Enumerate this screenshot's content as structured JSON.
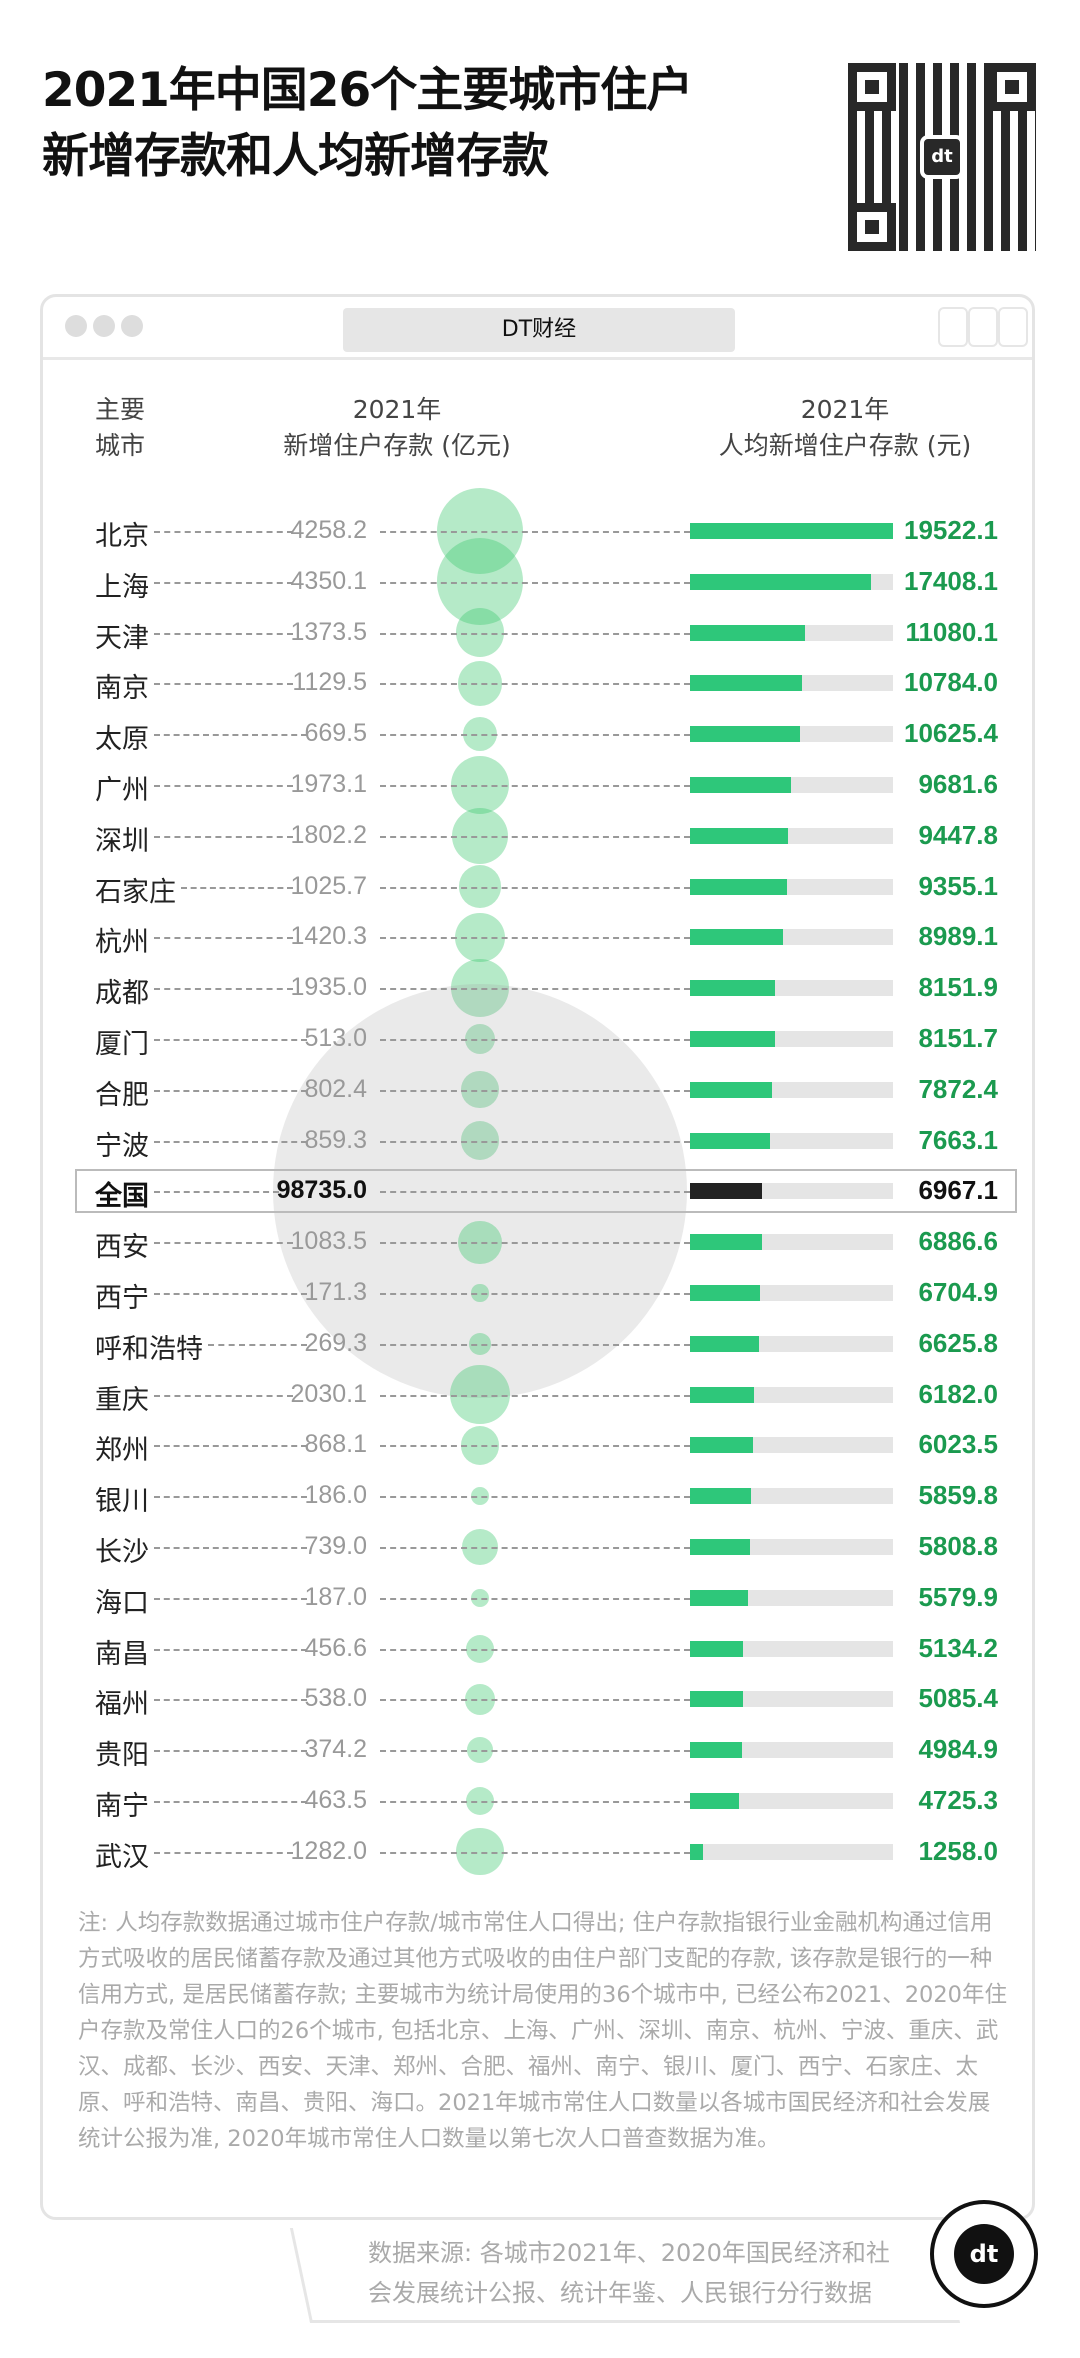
{
  "title_lines": [
    "2021年中国26个主要城市住户",
    "新增存款和人均新增存款"
  ],
  "window_title": "DT财经",
  "logo_text": "dt",
  "chart_data": {
    "type": "table",
    "headers": {
      "city": [
        "主要",
        "城市"
      ],
      "deposit": [
        "2021年",
        "新增住户存款 (亿元)"
      ],
      "per_capita": [
        "2021年",
        "人均新增住户存款 (元)"
      ]
    },
    "rows": [
      {
        "city": "北京",
        "deposit": "4258.2",
        "per_capita": "19522.1"
      },
      {
        "city": "上海",
        "deposit": "4350.1",
        "per_capita": "17408.1"
      },
      {
        "city": "天津",
        "deposit": "1373.5",
        "per_capita": "11080.1"
      },
      {
        "city": "南京",
        "deposit": "1129.5",
        "per_capita": "10784.0"
      },
      {
        "city": "太原",
        "deposit": "669.5",
        "per_capita": "10625.4"
      },
      {
        "city": "广州",
        "deposit": "1973.1",
        "per_capita": "9681.6"
      },
      {
        "city": "深圳",
        "deposit": "1802.2",
        "per_capita": "9447.8"
      },
      {
        "city": "石家庄",
        "deposit": "1025.7",
        "per_capita": "9355.1"
      },
      {
        "city": "杭州",
        "deposit": "1420.3",
        "per_capita": "8989.1"
      },
      {
        "city": "成都",
        "deposit": "1935.0",
        "per_capita": "8151.9"
      },
      {
        "city": "厦门",
        "deposit": "513.0",
        "per_capita": "8151.7"
      },
      {
        "city": "合肥",
        "deposit": "802.4",
        "per_capita": "7872.4"
      },
      {
        "city": "宁波",
        "deposit": "859.3",
        "per_capita": "7663.1"
      },
      {
        "city": "全国",
        "deposit": "98735.0",
        "per_capita": "6967.1",
        "highlight": true
      },
      {
        "city": "西安",
        "deposit": "1083.5",
        "per_capita": "6886.6"
      },
      {
        "city": "西宁",
        "deposit": "171.3",
        "per_capita": "6704.9"
      },
      {
        "city": "呼和浩特",
        "deposit": "269.3",
        "per_capita": "6625.8"
      },
      {
        "city": "重庆",
        "deposit": "2030.1",
        "per_capita": "6182.0"
      },
      {
        "city": "郑州",
        "deposit": "868.1",
        "per_capita": "6023.5"
      },
      {
        "city": "银川",
        "deposit": "186.0",
        "per_capita": "5859.8"
      },
      {
        "city": "长沙",
        "deposit": "739.0",
        "per_capita": "5808.8"
      },
      {
        "city": "海口",
        "deposit": "187.0",
        "per_capita": "5579.9"
      },
      {
        "city": "南昌",
        "deposit": "456.6",
        "per_capita": "5134.2"
      },
      {
        "city": "福州",
        "deposit": "538.0",
        "per_capita": "5085.4"
      },
      {
        "city": "贵阳",
        "deposit": "374.2",
        "per_capita": "4984.9"
      },
      {
        "city": "南宁",
        "deposit": "463.5",
        "per_capita": "4725.3"
      },
      {
        "city": "武汉",
        "deposit": "1282.0",
        "per_capita": "1258.0"
      }
    ],
    "bar_max": 19522.1,
    "colors": {
      "bar": "#2ec77a",
      "bubble": "#3cc86e",
      "value": "#1b9a4f",
      "national_bar": "#222222"
    }
  },
  "note": "注: 人均存款数据通过城市住户存款/城市常住人口得出; 住户存款指银行业金融机构通过信用方式吸收的居民储蓄存款及通过其他方式吸收的由住户部门支配的存款, 该存款是银行的一种信用方式, 是居民储蓄存款; 主要城市为统计局使用的36个城市中, 已经公布2021、2020年住户存款及常住人口的26个城市, 包括北京、上海、广州、深圳、南京、杭州、宁波、重庆、武汉、成都、长沙、西安、天津、郑州、合肥、福州、南宁、银川、厦门、西宁、石家庄、太原、呼和浩特、南昌、贵阳、海口。2021年城市常住人口数量以各城市国民经济和社会发展统计公报为准, 2020年城市常住人口数量以第七次人口普查数据为准。",
  "source_lines": [
    "数据来源: 各城市2021年、2020年国民经济和社",
    "会发展统计公报、统计年鉴、人民银行分行数据"
  ]
}
